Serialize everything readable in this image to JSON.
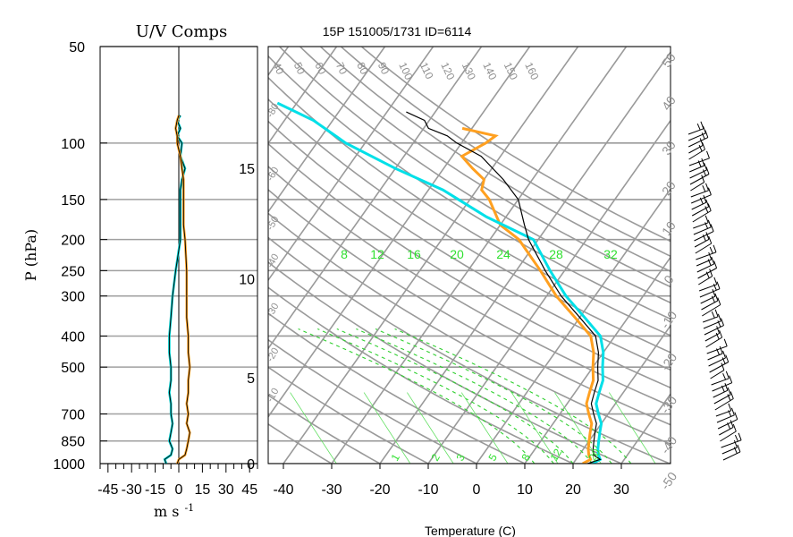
{
  "header": {
    "left_title": "U/V Comps",
    "right_title": "15P 151005/1731 ID=6114"
  },
  "axes": {
    "p_label": "P (hPa)",
    "wind_unit_main": "m s",
    "wind_unit_exp": "-1",
    "temp_label": "Temperature (C)"
  },
  "chart_data": [
    {
      "type": "line",
      "title": "U/V Comps",
      "ylabel": "P (hPa)",
      "xlabel": "m s -1",
      "y_scale": "log",
      "y_reversed": true,
      "ylim": [
        1000,
        50
      ],
      "xlim": [
        -50,
        50
      ],
      "y_ticks": [
        50,
        100,
        150,
        200,
        250,
        300,
        400,
        500,
        700,
        850,
        1000
      ],
      "x_ticks": [
        -45,
        -30,
        -15,
        0,
        15,
        30,
        45
      ],
      "series": [
        {
          "color": "#00cfcf",
          "points": [
            [
              -8,
              1000
            ],
            [
              -9,
              970
            ],
            [
              -5,
              940
            ],
            [
              -4,
              900
            ],
            [
              -6,
              850
            ],
            [
              -5,
              800
            ],
            [
              -4,
              750
            ],
            [
              -5,
              700
            ],
            [
              -5,
              650
            ],
            [
              -6,
              600
            ],
            [
              -5,
              550
            ],
            [
              -5,
              500
            ],
            [
              -6,
              450
            ],
            [
              -6,
              400
            ],
            [
              -5,
              350
            ],
            [
              -4,
              300
            ],
            [
              -2,
              250
            ],
            [
              1,
              200
            ],
            [
              1,
              180
            ],
            [
              1,
              150
            ],
            [
              1,
              140
            ],
            [
              2,
              130
            ],
            [
              4,
              120
            ],
            [
              1,
              110
            ],
            [
              2,
              100
            ],
            [
              -1,
              95
            ],
            [
              1,
              90
            ],
            [
              -1,
              85
            ],
            [
              1,
              82
            ]
          ]
        },
        {
          "color": "#ffa020",
          "points": [
            [
              -1,
              1000
            ],
            [
              0,
              970
            ],
            [
              4,
              940
            ],
            [
              5,
              900
            ],
            [
              6,
              850
            ],
            [
              7,
              800
            ],
            [
              5,
              750
            ],
            [
              6,
              700
            ],
            [
              5,
              650
            ],
            [
              6,
              600
            ],
            [
              6,
              550
            ],
            [
              7,
              500
            ],
            [
              6,
              450
            ],
            [
              6,
              400
            ],
            [
              5,
              350
            ],
            [
              5,
              300
            ],
            [
              5,
              250
            ],
            [
              4,
              200
            ],
            [
              3,
              180
            ],
            [
              3,
              150
            ],
            [
              3,
              140
            ],
            [
              3,
              130
            ],
            [
              2,
              120
            ],
            [
              1,
              110
            ],
            [
              -1,
              100
            ],
            [
              -1,
              95
            ],
            [
              -2,
              90
            ],
            [
              -1,
              85
            ],
            [
              0,
              82
            ]
          ]
        }
      ]
    },
    {
      "type": "line",
      "title": "15P 151005/1731 ID=6114",
      "xlabel": "Temperature (C)",
      "y_scale": "log",
      "y_reversed": true,
      "ylim": [
        1000,
        50
      ],
      "xlim": [
        -40,
        40
      ],
      "x_ticks": [
        -40,
        -30,
        -20,
        -10,
        0,
        10,
        20,
        30
      ],
      "height_labels": [
        "0",
        "5",
        "10",
        "15"
      ],
      "isotherm_labels": [
        "-50",
        "-40",
        "-30",
        "-20",
        "-10",
        "0",
        "10",
        "20",
        "30",
        "40",
        "50"
      ],
      "dry_adiabat_labels": [
        "40",
        "50",
        "60",
        "70",
        "80",
        "90",
        "100",
        "110",
        "120",
        "130",
        "140",
        "150",
        "160"
      ],
      "mixing_ratio_labels": [
        "8",
        "12",
        "16",
        "20",
        "24",
        "28",
        "32"
      ],
      "bottom_mixing_labels": [
        "1",
        "2",
        "3",
        "5",
        "8",
        "12",
        "20"
      ],
      "series": [
        {
          "color": "#ffa020",
          "points": [
            [
              22,
              1000
            ],
            [
              23,
              970
            ],
            [
              22,
              940
            ],
            [
              21,
              900
            ],
            [
              20,
              850
            ],
            [
              19,
              800
            ],
            [
              18,
              750
            ],
            [
              16,
              700
            ],
            [
              14,
              650
            ],
            [
              13,
              600
            ],
            [
              12,
              550
            ],
            [
              10,
              500
            ],
            [
              8,
              450
            ],
            [
              5,
              400
            ],
            [
              -1,
              350
            ],
            [
              -8,
              300
            ],
            [
              -15,
              250
            ],
            [
              -24,
              200
            ],
            [
              -30,
              180
            ],
            [
              -36,
              150
            ],
            [
              -39,
              140
            ],
            [
              -40,
              130
            ],
            [
              -44,
              120
            ],
            [
              -48,
              110
            ],
            [
              -45,
              100
            ],
            [
              -44,
              95
            ],
            [
              -52,
              90
            ]
          ]
        },
        {
          "color": "#00e0e8",
          "points": [
            [
              24,
              1000
            ],
            [
              25,
              970
            ],
            [
              24,
              940
            ],
            [
              23,
              900
            ],
            [
              22,
              850
            ],
            [
              21,
              800
            ],
            [
              20,
              750
            ],
            [
              18,
              700
            ],
            [
              16,
              650
            ],
            [
              15,
              600
            ],
            [
              14,
              550
            ],
            [
              12,
              500
            ],
            [
              10,
              450
            ],
            [
              7,
              400
            ],
            [
              1,
              350
            ],
            [
              -6,
              300
            ],
            [
              -13,
              250
            ],
            [
              -21,
              200
            ],
            [
              -34,
              170
            ],
            [
              -47,
              140
            ],
            [
              -60,
              120
            ],
            [
              -74,
              100
            ],
            [
              -84,
              85
            ],
            [
              -94,
              75
            ]
          ]
        },
        {
          "color": "#000000",
          "points": [
            [
              23,
              1000
            ],
            [
              25,
              970
            ],
            [
              23,
              940
            ],
            [
              22,
              900
            ],
            [
              21,
              850
            ],
            [
              20,
              800
            ],
            [
              19,
              750
            ],
            [
              17,
              700
            ],
            [
              15,
              650
            ],
            [
              14,
              600
            ],
            [
              13,
              550
            ],
            [
              11,
              500
            ],
            [
              9,
              450
            ],
            [
              6,
              400
            ],
            [
              0,
              350
            ],
            [
              -7,
              300
            ],
            [
              -14,
              250
            ],
            [
              -22,
              200
            ],
            [
              -25,
              180
            ],
            [
              -30,
              150
            ],
            [
              -36,
              130
            ],
            [
              -44,
              110
            ],
            [
              -51,
              100
            ],
            [
              -54,
              95
            ],
            [
              -59,
              90
            ],
            [
              -61,
              85
            ],
            [
              -66,
              80
            ]
          ]
        }
      ]
    }
  ]
}
